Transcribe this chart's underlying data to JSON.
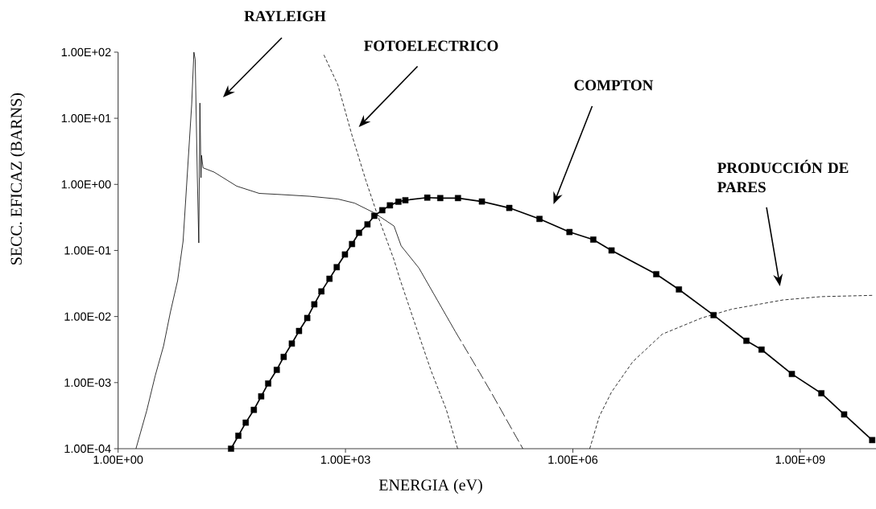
{
  "chart_data": {
    "type": "line",
    "xlabel": "ENERGIA (eV)",
    "ylabel": "SECC. EFICAZ (BARNS)",
    "log": "xy",
    "grid": false,
    "xlim": [
      1,
      10000000000.0
    ],
    "ylim": [
      0.0001,
      100
    ],
    "xticks": [
      {
        "value": 1,
        "label": "1.00E+00"
      },
      {
        "value": 1000,
        "label": "1.00E+03"
      },
      {
        "value": 1000000,
        "label": "1.00E+06"
      },
      {
        "value": 1000000000,
        "label": "1.00E+09"
      }
    ],
    "yticks": [
      {
        "value": 0.0001,
        "label": "1.00E-04"
      },
      {
        "value": 0.001,
        "label": "1.00E-03"
      },
      {
        "value": 0.01,
        "label": "1.00E-02"
      },
      {
        "value": 0.1,
        "label": "1.00E-01"
      },
      {
        "value": 1,
        "label": "1.00E+00"
      },
      {
        "value": 10,
        "label": "1.00E+01"
      },
      {
        "value": 100,
        "label": "1.00E+02"
      }
    ],
    "annotations": [
      "RAYLEIGH",
      "FOTOELECTRICO",
      "COMPTON",
      "PRODUCCIÓN DE PARES"
    ],
    "series": [
      {
        "color": "#000000",
        "line_style": "solid",
        "marker": "none",
        "x": [
          1.72,
          2.39,
          3.08,
          3.98,
          4.9,
          6.1,
          7.2,
          9.35,
          10.0,
          10.4,
          11.1,
          11.6,
          12.0,
          12.4,
          12.6,
          13.2,
          18.5,
          36.7,
          72.8,
          144,
          339,
          794,
          1320,
          2400,
          4370,
          5430,
          9330,
          28200
        ],
        "values": [
          0.0001,
          0.00038,
          0.00126,
          0.0036,
          0.0117,
          0.035,
          0.138,
          16.2,
          100,
          78,
          1.26,
          0.13,
          17,
          1.26,
          2.75,
          1.78,
          1.53,
          0.94,
          0.73,
          0.7,
          0.66,
          0.6,
          0.52,
          0.37,
          0.234,
          0.117,
          0.054,
          0.0059
        ]
      },
      {
        "color": "#000000",
        "line_style": "dashed",
        "marker": "none",
        "x": [
          28200,
          48500,
          83200,
          132000,
          219000
        ],
        "values": [
          0.0059,
          0.00207,
          0.00072,
          0.00028,
          0.0001
        ]
      },
      {
        "color": "#000000",
        "line_style": "dotted",
        "marker": "none",
        "x": [
          519,
          794,
          1220,
          1860,
          2630,
          4370,
          5180,
          7940,
          13500,
          21400,
          30200
        ],
        "values": [
          91,
          32,
          5.5,
          1.14,
          0.35,
          0.072,
          0.038,
          0.0089,
          0.0015,
          0.00039,
          0.0001
        ]
      },
      {
        "color": "#000000",
        "line_style": "solid",
        "marker": "square",
        "x": [
          30.9,
          38.6,
          48.3,
          61.8,
          77.3,
          95.5,
          124,
          153,
          196,
          244,
          313,
          388,
          481,
          615,
          767,
          984,
          1220,
          1510,
          1950,
          2400,
          3060,
          3860,
          4990,
          6170,
          12000,
          17800,
          30500,
          63100,
          145000,
          363000,
          902000,
          1860000,
          3240000,
          12600000,
          25100000,
          71900000,
          195000000,
          309000000,
          776000000,
          1900000000,
          3800000000,
          8900000000
        ],
        "values": [
          0.0001,
          0.000157,
          0.000248,
          0.000387,
          0.00062,
          0.00097,
          0.00156,
          0.00245,
          0.0039,
          0.00605,
          0.0095,
          0.0153,
          0.024,
          0.0373,
          0.0558,
          0.0869,
          0.125,
          0.185,
          0.248,
          0.334,
          0.406,
          0.481,
          0.546,
          0.575,
          0.63,
          0.62,
          0.62,
          0.55,
          0.44,
          0.3,
          0.19,
          0.146,
          0.1,
          0.0437,
          0.0257,
          0.0105,
          0.0043,
          0.00316,
          0.00135,
          0.00069,
          0.00033,
          0.000135
        ]
      },
      {
        "color": "#000000",
        "line_style": "dotted",
        "marker": "none",
        "x": [
          1670000,
          2240000,
          3240000,
          6170000,
          15100000,
          50000000,
          124000000,
          590000000,
          1900000000,
          8900000000
        ],
        "values": [
          0.0001,
          0.00031,
          0.00072,
          0.00207,
          0.0054,
          0.0095,
          0.0129,
          0.0178,
          0.02,
          0.0209
        ]
      }
    ]
  }
}
